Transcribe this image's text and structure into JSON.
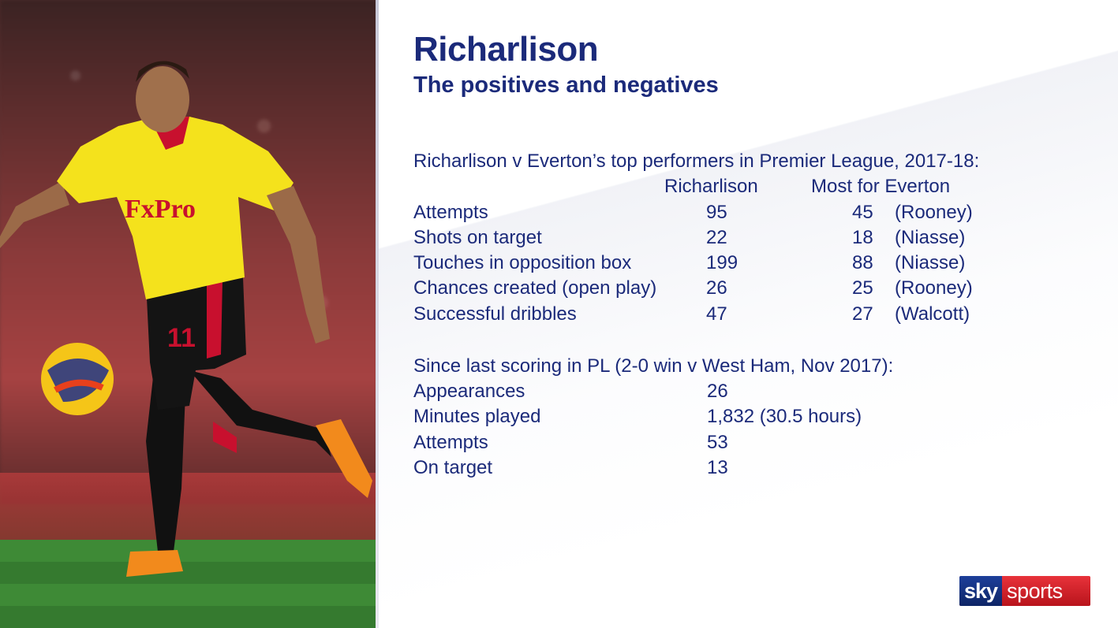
{
  "header": {
    "title": "Richarlison",
    "subtitle": "The positives and negatives"
  },
  "comparison": {
    "heading": "Richarlison v Everton’s top performers in Premier League, 2017-18:",
    "col_player": "Richarlison",
    "col_everton": "Most for Everton",
    "rows": [
      {
        "label": "Attempts",
        "player": "95",
        "everton": "45",
        "everton_name": "(Rooney)"
      },
      {
        "label": "Shots on target",
        "player": "22",
        "everton": "18",
        "everton_name": "(Niasse)"
      },
      {
        "label": "Touches in opposition box",
        "player": "199",
        "everton": "88",
        "everton_name": "(Niasse)"
      },
      {
        "label": "Chances created (open play)",
        "player": "26",
        "everton": "25",
        "everton_name": "(Rooney)"
      },
      {
        "label": "Successful dribbles",
        "player": "47",
        "everton": "27",
        "everton_name": "(Walcott)"
      }
    ]
  },
  "since_last_goal": {
    "heading": "Since last scoring in PL (2-0 win v West Ham, Nov 2017):",
    "rows": [
      {
        "label": "Appearances",
        "value": "26"
      },
      {
        "label": "Minutes played",
        "value": "1,832 (30.5 hours)"
      },
      {
        "label": "Attempts",
        "value": "53"
      },
      {
        "label": "On target",
        "value": "13"
      }
    ]
  },
  "photo": {
    "shirt_sponsor": "FxPro",
    "shirt_number": "11"
  },
  "logo": {
    "part1": "sky",
    "part2": "sports"
  },
  "colors": {
    "text_primary": "#1b2a7a",
    "logo_red": "#d42028",
    "logo_blue": "#1d3f9a",
    "shirt_yellow": "#f4e21c"
  }
}
